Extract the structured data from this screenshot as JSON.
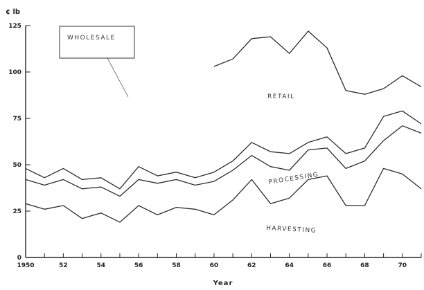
{
  "chart_data": {
    "type": "line",
    "title": "",
    "ylabel": "¢ lb",
    "xlabel": "Year",
    "ylim": [
      0,
      125
    ],
    "xlim": [
      1950,
      1971
    ],
    "yticks": [
      0,
      25,
      50,
      75,
      100,
      125
    ],
    "xticks": [
      {
        "value": 1950,
        "label": "1950"
      },
      {
        "value": 1952,
        "label": "52"
      },
      {
        "value": 1954,
        "label": "54"
      },
      {
        "value": 1956,
        "label": "56"
      },
      {
        "value": 1958,
        "label": "58"
      },
      {
        "value": 1960,
        "label": "60"
      },
      {
        "value": 1962,
        "label": "62"
      },
      {
        "value": 1964,
        "label": "64"
      },
      {
        "value": 1966,
        "label": "66"
      },
      {
        "value": 1968,
        "label": "68"
      },
      {
        "value": 1970,
        "label": "70"
      }
    ],
    "grid": false,
    "series": [
      {
        "name": "RETAIL",
        "x": [
          1960,
          1961,
          1962,
          1963,
          1964,
          1965,
          1966,
          1967,
          1968,
          1969,
          1970,
          1971
        ],
        "values": [
          103,
          107,
          118,
          119,
          110,
          122,
          113,
          90,
          88,
          91,
          98,
          92
        ]
      },
      {
        "name": "WHOLESALE",
        "x": [
          1950,
          1951,
          1952,
          1953,
          1954,
          1955,
          1956,
          1957,
          1958,
          1959,
          1960,
          1961,
          1962,
          1963,
          1964,
          1965,
          1966,
          1967,
          1968,
          1969,
          1970,
          1971
        ],
        "values": [
          48,
          43,
          48,
          42,
          43,
          37,
          49,
          44,
          46,
          43,
          46,
          52,
          62,
          57,
          56,
          62,
          65,
          56,
          59,
          76,
          79,
          72
        ]
      },
      {
        "name": "PROCESSING",
        "x": [
          1950,
          1951,
          1952,
          1953,
          1954,
          1955,
          1956,
          1957,
          1958,
          1959,
          1960,
          1961,
          1962,
          1963,
          1964,
          1965,
          1966,
          1967,
          1968,
          1969,
          1970,
          1971
        ],
        "values": [
          42,
          39,
          42,
          37,
          38,
          33,
          42,
          40,
          42,
          39,
          41,
          47,
          55,
          49,
          47,
          58,
          59,
          48,
          52,
          63,
          71,
          67
        ]
      },
      {
        "name": "HARVESTING",
        "x": [
          1950,
          1951,
          1952,
          1953,
          1954,
          1955,
          1956,
          1957,
          1958,
          1959,
          1960,
          1961,
          1962,
          1963,
          1964,
          1965,
          1966,
          1967,
          1968,
          1969,
          1970,
          1971
        ],
        "values": [
          29,
          26,
          28,
          21,
          24,
          19,
          28,
          23,
          27,
          26,
          23,
          31,
          42,
          29,
          32,
          42,
          44,
          28,
          28,
          48,
          45,
          37
        ]
      }
    ],
    "series_labels": {
      "retail": "RETAIL",
      "wholesale": "WHOLESALE",
      "processing": "PROCESSING",
      "harvesting": "HARVESTING"
    },
    "line_color": "#2a2a2a",
    "background": "#ffffff"
  }
}
